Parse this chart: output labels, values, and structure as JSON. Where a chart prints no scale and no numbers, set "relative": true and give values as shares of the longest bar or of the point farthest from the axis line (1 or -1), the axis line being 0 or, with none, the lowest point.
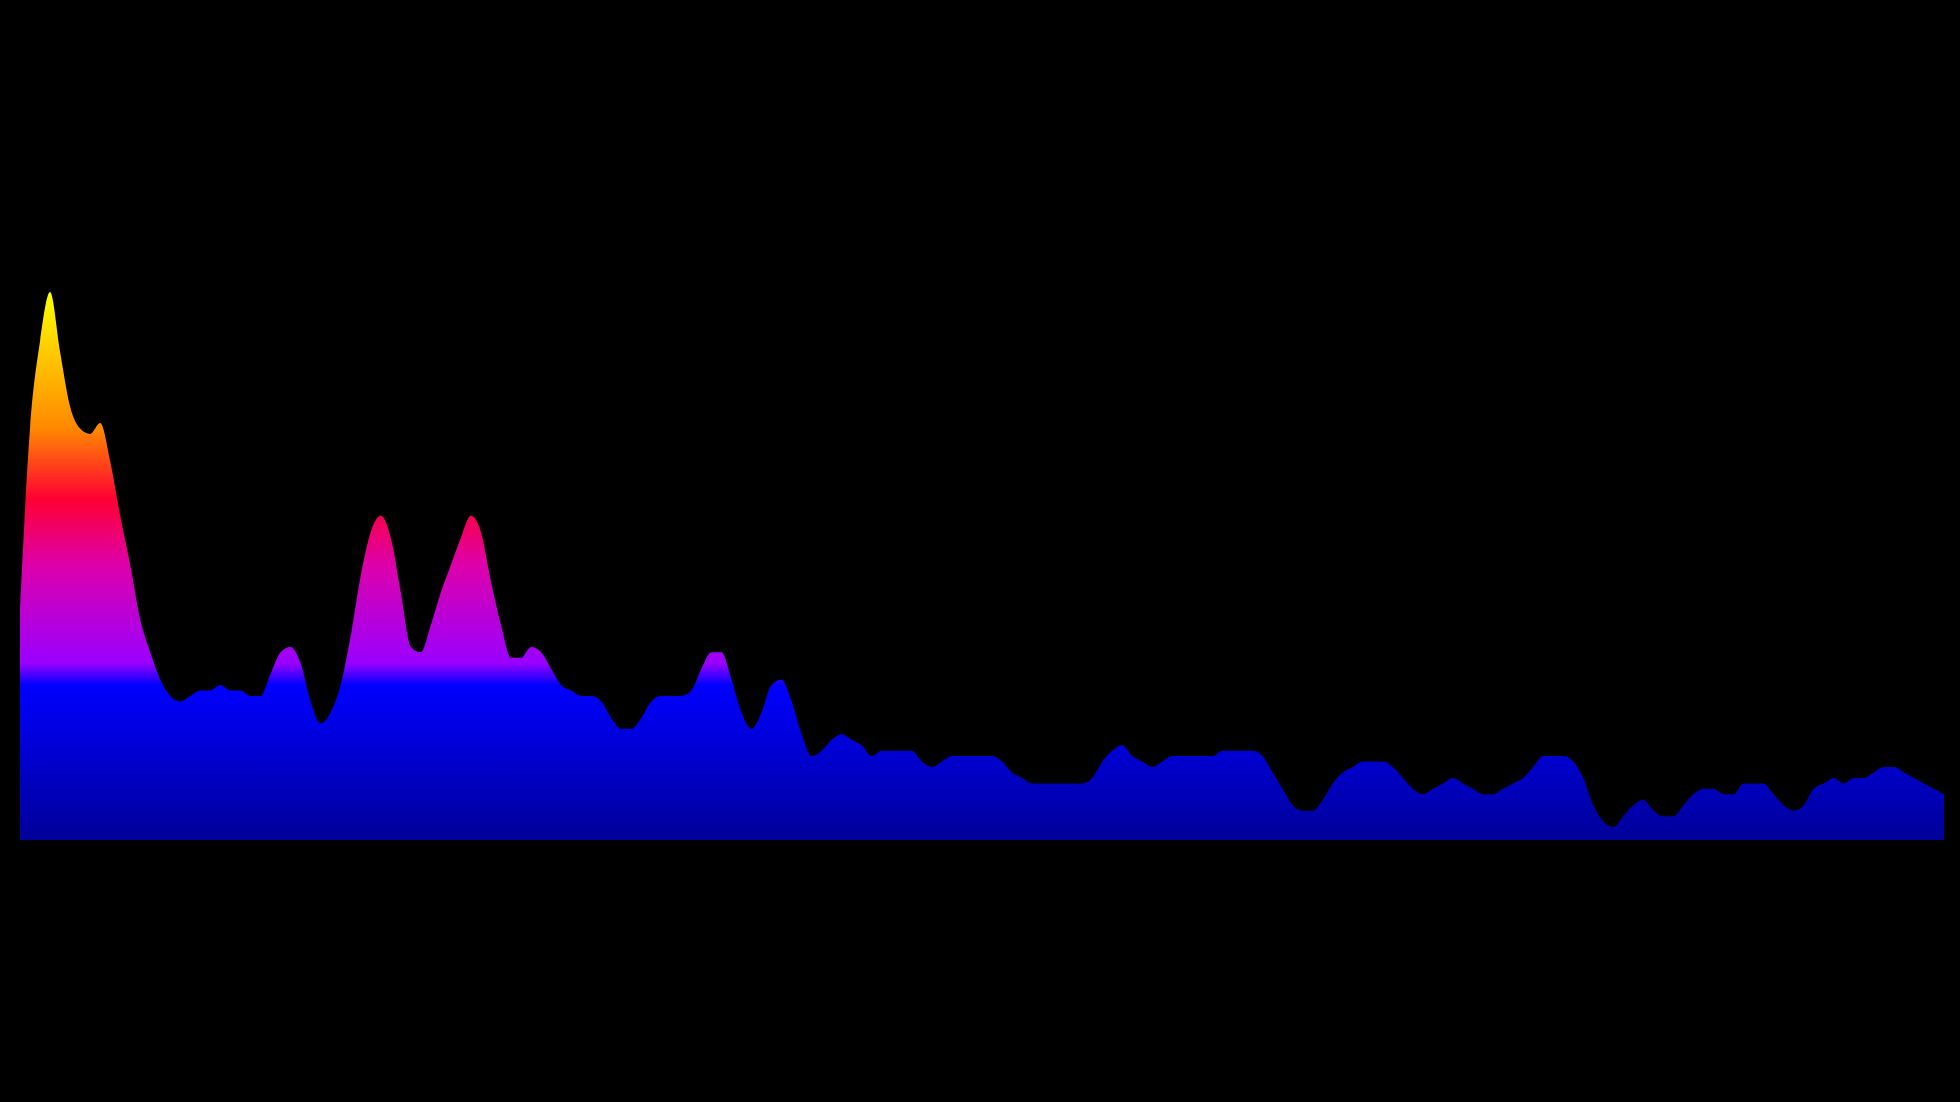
{
  "chart_data": {
    "type": "area",
    "relative": true,
    "categories": [
      null,
      null,
      null,
      null,
      null,
      null,
      null,
      null,
      null,
      null,
      null,
      null,
      null,
      null,
      null,
      null,
      null,
      null,
      null,
      null,
      null,
      null,
      null,
      null,
      null,
      null,
      null,
      null,
      null,
      null,
      null,
      null,
      null,
      null,
      null,
      null,
      null,
      null,
      null,
      null,
      null,
      null,
      null,
      null,
      null,
      null,
      null,
      null,
      null,
      null,
      null,
      null,
      null,
      null,
      null,
      null,
      null,
      null,
      null,
      null,
      null,
      null,
      null,
      null,
      null,
      null,
      null,
      null,
      null,
      null,
      null,
      null,
      null,
      null,
      null,
      null,
      null,
      null,
      null,
      null,
      null,
      null,
      null,
      null,
      null,
      null,
      null,
      null,
      null,
      null,
      null,
      null,
      null,
      null,
      null,
      null,
      null,
      null,
      null,
      null,
      null,
      null,
      null,
      null,
      null,
      null,
      null,
      null,
      null,
      null,
      null,
      null,
      null,
      null,
      null,
      null,
      null,
      null,
      null,
      null,
      null,
      null,
      null,
      null,
      null,
      null,
      null,
      null,
      null,
      null,
      null,
      null,
      null,
      null,
      null,
      null,
      null,
      null,
      null,
      null,
      null,
      null,
      null,
      null,
      null,
      null,
      null,
      null,
      null,
      null,
      null,
      null,
      null,
      null,
      null,
      null,
      null,
      null,
      null,
      null,
      null,
      null,
      null,
      null,
      null,
      null,
      null,
      null,
      null,
      null,
      null,
      null,
      null,
      null,
      null,
      null,
      null,
      null,
      null,
      null,
      null,
      null,
      null,
      null,
      null,
      null,
      null,
      null,
      null,
      null,
      null,
      null,
      null
    ],
    "series": [
      {
        "color": "#0000ff",
        "values": [
          0.42,
          0.75,
          0.91,
          1.0,
          0.89,
          0.79,
          0.75,
          0.74,
          0.76,
          0.69,
          0.59,
          0.5,
          0.4,
          0.34,
          0.29,
          0.26,
          0.25,
          0.26,
          0.27,
          0.27,
          0.28,
          0.27,
          0.27,
          0.26,
          0.26,
          0.3,
          0.34,
          0.35,
          0.32,
          0.25,
          0.21,
          0.23,
          0.28,
          0.37,
          0.48,
          0.56,
          0.59,
          0.55,
          0.45,
          0.35,
          0.34,
          0.39,
          0.45,
          0.5,
          0.55,
          0.59,
          0.56,
          0.47,
          0.39,
          0.33,
          0.33,
          0.35,
          0.34,
          0.31,
          0.28,
          0.27,
          0.26,
          0.26,
          0.25,
          0.22,
          0.2,
          0.2,
          0.22,
          0.25,
          0.26,
          0.26,
          0.26,
          0.27,
          0.31,
          0.34,
          0.34,
          0.29,
          0.23,
          0.2,
          0.23,
          0.28,
          0.29,
          0.25,
          0.19,
          0.15,
          0.16,
          0.18,
          0.19,
          0.18,
          0.17,
          0.15,
          0.16,
          0.16,
          0.16,
          0.16,
          0.14,
          0.13,
          0.14,
          0.15,
          0.15,
          0.15,
          0.15,
          0.15,
          0.14,
          0.12,
          0.11,
          0.1,
          0.1,
          0.1,
          0.1,
          0.1,
          0.1,
          0.11,
          0.14,
          0.16,
          0.17,
          0.15,
          0.14,
          0.13,
          0.14,
          0.15,
          0.15,
          0.15,
          0.15,
          0.15,
          0.16,
          0.16,
          0.16,
          0.16,
          0.15,
          0.12,
          0.09,
          0.06,
          0.05,
          0.05,
          0.07,
          0.1,
          0.12,
          0.13,
          0.14,
          0.14,
          0.14,
          0.13,
          0.11,
          0.09,
          0.08,
          0.09,
          0.1,
          0.11,
          0.1,
          0.09,
          0.08,
          0.08,
          0.09,
          0.1,
          0.11,
          0.13,
          0.15,
          0.15,
          0.15,
          0.14,
          0.11,
          0.06,
          0.03,
          0.02,
          0.04,
          0.06,
          0.07,
          0.05,
          0.04,
          0.04,
          0.06,
          0.08,
          0.09,
          0.09,
          0.08,
          0.08,
          0.1,
          0.1,
          0.1,
          0.08,
          0.06,
          0.05,
          0.06,
          0.09,
          0.1,
          0.11,
          0.1,
          0.11,
          0.11,
          0.12,
          0.13,
          0.13,
          0.12,
          0.11,
          0.1,
          0.09,
          0.08
        ]
      }
    ]
  }
}
